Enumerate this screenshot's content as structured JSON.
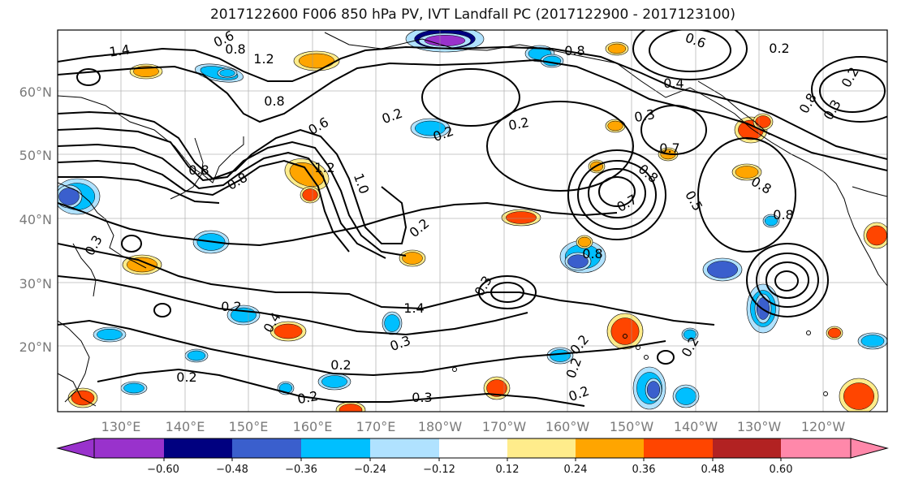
{
  "title": "2017122600 F006 850 hPa PV, IVT Landfall PC (2017122900 - 2017123100)",
  "lat_labels": [
    "60°N",
    "50°N",
    "40°N",
    "30°N",
    "20°N"
  ],
  "lon_labels": [
    "130°E",
    "140°E",
    "150°E",
    "160°E",
    "170°E",
    "180°W",
    "170°W",
    "160°W",
    "150°W",
    "140°W",
    "130°W",
    "120°W"
  ],
  "colorbar": {
    "colors": [
      "#9932cc",
      "#000080",
      "#3a5fcd",
      "#00bfff",
      "#b0e2ff",
      "#ffffff",
      "#ffec8b",
      "#ffa500",
      "#ff4500",
      "#b22222",
      "#ff88aa"
    ],
    "tick_labels": [
      "−0.60",
      "−0.48",
      "−0.36",
      "−0.24",
      "−0.12",
      "0.12",
      "0.24",
      "0.36",
      "0.48",
      "0.60"
    ]
  },
  "contour_labels": [
    "1.4",
    "0.6",
    "0.8",
    "1.2",
    "0.8",
    "0.8",
    "0.6",
    "1.0",
    "0.2",
    "0.2",
    "0.2",
    "0.2",
    "0.3",
    "0.8",
    "0.7",
    "0.8",
    "0.5",
    "0.6",
    "1.4",
    "0.4",
    "0.8",
    "0.8",
    "1.2",
    "0.8",
    "0.2",
    "0.2",
    "0.4",
    "0.3",
    "0.2",
    "0.2",
    "0.3",
    "0.2",
    "0.2",
    "0.3",
    "0.2",
    "0.2",
    "0.2",
    "0.3",
    "0.3",
    "0.2",
    "0.8",
    "0.8",
    "0.7"
  ]
}
